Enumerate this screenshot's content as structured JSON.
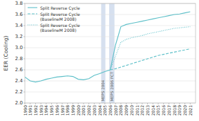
{
  "chart_data": {
    "type": "line",
    "ylabel": "EER (Cooling)",
    "xlim": [
      1990,
      2022
    ],
    "xticks": [
      1990,
      1991,
      1992,
      1993,
      1994,
      1995,
      1996,
      1997,
      1998,
      1999,
      2000,
      2001,
      2002,
      2003,
      2004,
      2005,
      2006,
      2007,
      2008,
      2009,
      2010,
      2011,
      2012,
      2013,
      2014,
      2015,
      2016,
      2017,
      2018,
      2019,
      2020,
      2021
    ],
    "ylim": [
      2.0,
      3.8
    ],
    "yticks": [
      {
        "value": 2.0,
        "label": "2.0"
      },
      2.2,
      2.4,
      2.6,
      2.8,
      {
        "value": 3.0,
        "label": "3.0"
      },
      3.2,
      3.4,
      3.6,
      3.8
    ],
    "grid": true,
    "legend": "upper left",
    "annotations": [
      {
        "text": "MEPS 2004",
        "x": [
          2004.3,
          2005.1
        ],
        "y": 2.03,
        "color": "#c5d3e8"
      },
      {
        "text": "MEPS 2006 FCT",
        "x": [
          2005.8,
          2006.8
        ],
        "y": 2.03,
        "color": "#c5d3e8"
      }
    ],
    "series": [
      {
        "name": "Split Reverse Cycle",
        "color": "#5bbfc8",
        "line_style": "solid",
        "x": [
          1990,
          1991,
          1992,
          1993,
          1994,
          1995,
          1996,
          1997,
          1998,
          1999,
          2000,
          2001,
          2002,
          2003,
          2004,
          2005,
          2006,
          2007,
          2008,
          2009,
          2010,
          2011,
          2012,
          2013,
          2014,
          2015,
          2016,
          2017,
          2018,
          2019,
          2020,
          2021
        ],
        "values": [
          2.47,
          2.4,
          2.38,
          2.4,
          2.43,
          2.45,
          2.47,
          2.48,
          2.49,
          2.48,
          2.43,
          2.42,
          2.44,
          2.5,
          2.53,
          2.57,
          2.6,
          3.05,
          3.38,
          3.42,
          3.44,
          3.46,
          3.48,
          3.5,
          3.52,
          3.54,
          3.56,
          3.58,
          3.6,
          3.61,
          3.63,
          3.65
        ]
      },
      {
        "name": "Split Reverse Cycle\n(BaselineM 2008)",
        "color": "#5bbfc8",
        "line_style": "dashed",
        "x": [
          2006,
          2007,
          2008,
          2009,
          2010,
          2011,
          2012,
          2013,
          2014,
          2015,
          2016,
          2017,
          2018,
          2019,
          2020,
          2021
        ],
        "values": [
          2.6,
          2.62,
          2.65,
          2.68,
          2.71,
          2.74,
          2.77,
          2.8,
          2.83,
          2.86,
          2.88,
          2.9,
          2.92,
          2.94,
          2.96,
          2.98
        ]
      },
      {
        "name": "Split Reverse Cycle\n(BaselineM 2008)",
        "color": "#5bbfc8",
        "line_style": "dotted",
        "x": [
          2006,
          2007,
          2008,
          2009,
          2010,
          2011,
          2012,
          2013,
          2014,
          2015,
          2016,
          2017,
          2018,
          2019,
          2020,
          2021
        ],
        "values": [
          2.6,
          2.85,
          3.1,
          3.15,
          3.18,
          3.2,
          3.22,
          3.25,
          3.27,
          3.29,
          3.31,
          3.33,
          3.35,
          3.36,
          3.37,
          3.38
        ]
      }
    ]
  }
}
